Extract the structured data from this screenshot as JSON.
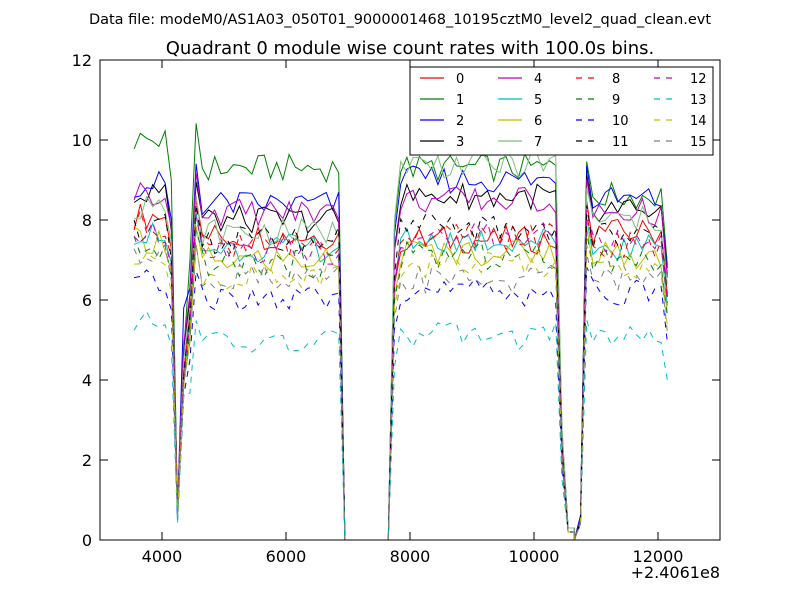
{
  "suptitle": "Data file: modeM0/AS1A03_050T01_9000001468_10195cztM0_level2_quad_clean.evt",
  "chart_data": {
    "type": "line",
    "title": "Quadrant 0 module wise count rates with 100.0s bins.",
    "xlabel": "",
    "ylabel": "",
    "x_offset_label": "+2.4061e8",
    "xlim": [
      3000,
      13000
    ],
    "ylim": [
      0,
      12
    ],
    "xticks": [
      4000,
      6000,
      8000,
      10000,
      12000
    ],
    "xtick_labels": [
      "4000",
      "6000",
      "8000",
      "10000",
      "12000"
    ],
    "yticks": [
      0,
      2,
      4,
      6,
      8,
      10,
      12
    ],
    "ytick_labels": [
      "0",
      "2",
      "4",
      "6",
      "8",
      "10",
      "12"
    ],
    "grid": false,
    "legend_position": "top-right",
    "legend_columns": 4,
    "segments": [
      {
        "start": 3550,
        "end": 4250,
        "step": 100
      },
      {
        "start": 4350,
        "end": 6950,
        "step": 100
      },
      {
        "start": 7650,
        "end": 10650,
        "step": 100
      },
      {
        "start": 10750,
        "end": 12150,
        "step": 100
      }
    ],
    "series": [
      {
        "name": "0",
        "color": "#ff0000",
        "style": "solid",
        "levels": [
          8.1,
          7.6,
          7.5,
          7.7
        ],
        "dips": [
          0.9,
          4.1,
          0.2,
          0.5
        ]
      },
      {
        "name": "1",
        "color": "#008000",
        "style": "solid",
        "levels": [
          10.0,
          9.3,
          9.3,
          8.6
        ],
        "dips": [
          0.8,
          4.7,
          0.3,
          0.6
        ]
      },
      {
        "name": "2",
        "color": "#0000ff",
        "style": "solid",
        "levels": [
          8.9,
          8.4,
          9.0,
          8.5
        ],
        "dips": [
          0.7,
          5.8,
          0.3,
          0.6
        ]
      },
      {
        "name": "3",
        "color": "#000000",
        "style": "solid",
        "levels": [
          8.6,
          8.0,
          8.6,
          8.3
        ],
        "dips": [
          0.7,
          4.8,
          0.2,
          0.5
        ]
      },
      {
        "name": "4",
        "color": "#bf00bf",
        "style": "solid",
        "levels": [
          8.7,
          8.2,
          8.5,
          8.2
        ],
        "dips": [
          0.8,
          4.9,
          0.2,
          0.5
        ]
      },
      {
        "name": "5",
        "color": "#00bfbf",
        "style": "solid",
        "levels": [
          7.7,
          7.3,
          7.5,
          7.3
        ],
        "dips": [
          0.6,
          4.0,
          0.2,
          0.5
        ]
      },
      {
        "name": "6",
        "color": "#bfbf00",
        "style": "solid",
        "levels": [
          7.5,
          7.0,
          7.2,
          7.1
        ],
        "dips": [
          0.6,
          3.9,
          0.2,
          0.4
        ]
      },
      {
        "name": "7",
        "color": "#7fbf7f",
        "style": "solid",
        "levels": [
          8.3,
          7.7,
          9.4,
          8.0
        ],
        "dips": [
          0.8,
          4.5,
          0.3,
          0.5
        ]
      },
      {
        "name": "8",
        "color": "#ff0000",
        "style": "dashed",
        "levels": [
          7.9,
          7.4,
          7.6,
          7.4
        ],
        "dips": [
          0.8,
          4.2,
          0.2,
          0.5
        ]
      },
      {
        "name": "9",
        "color": "#008000",
        "style": "dashed",
        "levels": [
          7.3,
          6.9,
          7.1,
          7.0
        ],
        "dips": [
          0.6,
          4.0,
          0.2,
          0.5
        ]
      },
      {
        "name": "10",
        "color": "#0000ff",
        "style": "dashed",
        "levels": [
          6.4,
          6.0,
          6.2,
          6.2
        ],
        "dips": [
          0.5,
          3.6,
          0.2,
          0.4
        ]
      },
      {
        "name": "11",
        "color": "#000000",
        "style": "dashed",
        "levels": [
          7.8,
          7.5,
          7.8,
          7.6
        ],
        "dips": [
          0.7,
          4.2,
          0.2,
          0.5
        ]
      },
      {
        "name": "12",
        "color": "#bf00bf",
        "style": "dashed",
        "levels": [
          7.6,
          7.2,
          7.6,
          7.5
        ],
        "dips": [
          0.7,
          4.1,
          0.2,
          0.5
        ]
      },
      {
        "name": "13",
        "color": "#00bfbf",
        "style": "dashed",
        "levels": [
          5.4,
          4.9,
          5.1,
          5.0
        ],
        "dips": [
          0.4,
          3.6,
          0.2,
          0.4
        ]
      },
      {
        "name": "14",
        "color": "#bfbf00",
        "style": "dashed",
        "levels": [
          6.9,
          6.6,
          6.9,
          6.7
        ],
        "dips": [
          0.6,
          3.8,
          0.2,
          0.4
        ]
      },
      {
        "name": "15",
        "color": "#7f7f7f",
        "style": "dashed",
        "levels": [
          7.2,
          6.6,
          6.5,
          6.5
        ],
        "dips": [
          0.6,
          3.9,
          0.2,
          0.4
        ]
      }
    ]
  }
}
